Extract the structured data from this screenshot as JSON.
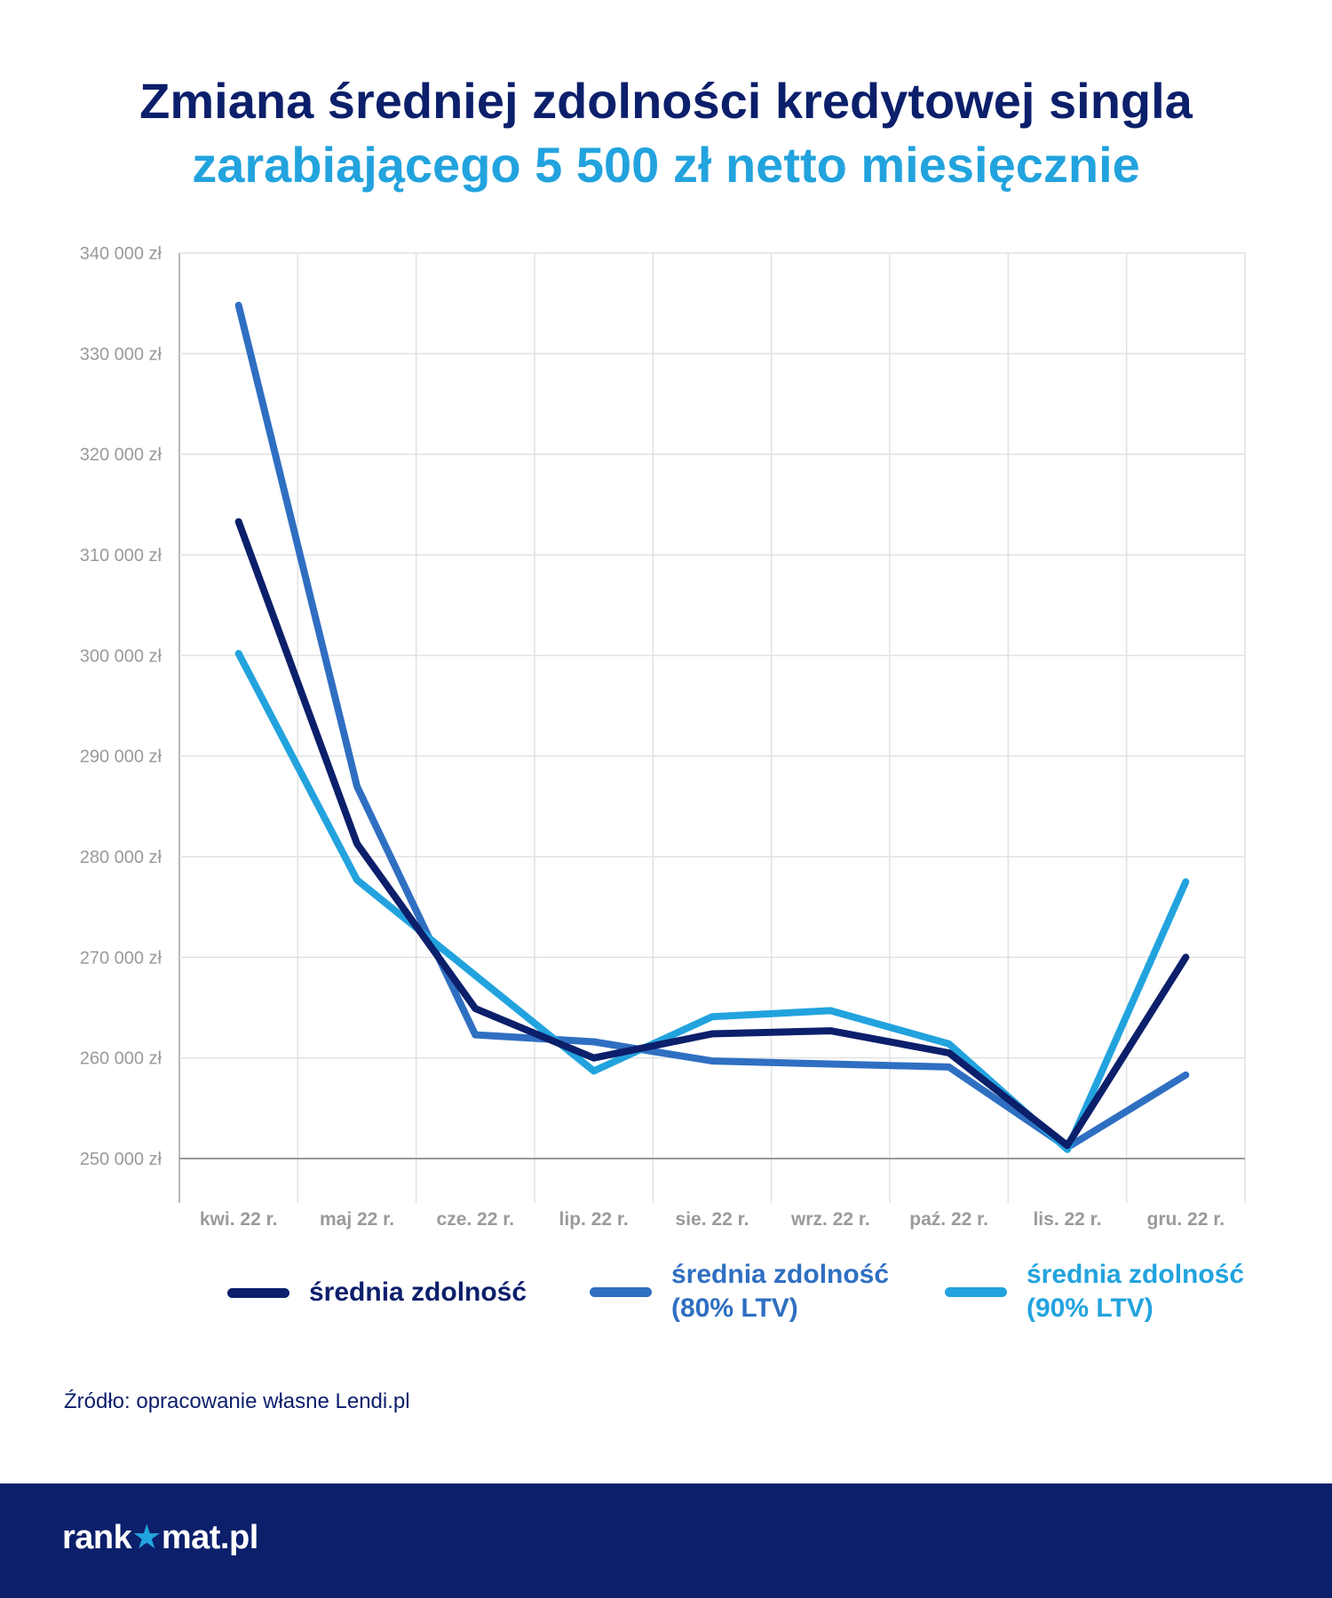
{
  "title": {
    "line1": "Zmiana średniej zdolności kredytowej singla",
    "line2": "zarabiającego 5 500 zł netto miesięcznie"
  },
  "chart_data": {
    "type": "line",
    "categories": [
      "kwi. 22 r.",
      "maj 22 r.",
      "cze. 22  r.",
      "lip. 22 r.",
      "sie. 22 r.",
      "wrz. 22 r.",
      "paź. 22 r.",
      "lis. 22 r.",
      "gru. 22 r."
    ],
    "ylim": [
      250000,
      340000
    ],
    "yticks": [
      250000,
      260000,
      270000,
      280000,
      290000,
      300000,
      310000,
      320000,
      330000,
      340000
    ],
    "ytick_labels": [
      "250 000 zł",
      "260 000 zł",
      "270 000 zł",
      "280 000 zł",
      "290 000 zł",
      "300 000 zł",
      "310 000 zł",
      "320 000 zł",
      "330 000 zł",
      "340 000 zł"
    ],
    "grid": true,
    "legend_position": "bottom",
    "series": [
      {
        "name": "średnia zdolność",
        "color": "#0c1f6b",
        "values": [
          313300,
          281300,
          264900,
          260000,
          262400,
          262700,
          260500,
          251300,
          270000
        ]
      },
      {
        "name": "średnia zdolność (80% LTV)",
        "name_lines": [
          "średnia zdolność",
          "(80% LTV)"
        ],
        "color": "#2f6fc2",
        "values": [
          334800,
          287000,
          262300,
          261600,
          259700,
          259400,
          259100,
          251100,
          258300
        ]
      },
      {
        "name": "średnia zdolność (90% LTV)",
        "name_lines": [
          "średnia zdolność",
          "(90% LTV)"
        ],
        "color": "#22a3de",
        "values": [
          300200,
          277700,
          268200,
          258700,
          264100,
          264700,
          261400,
          250900,
          277500
        ]
      }
    ]
  },
  "source": "Źródło: opracowanie własne Lendi.pl",
  "footer": {
    "logo_left": "rank",
    "logo_star": "★",
    "logo_right": "mat.pl"
  }
}
